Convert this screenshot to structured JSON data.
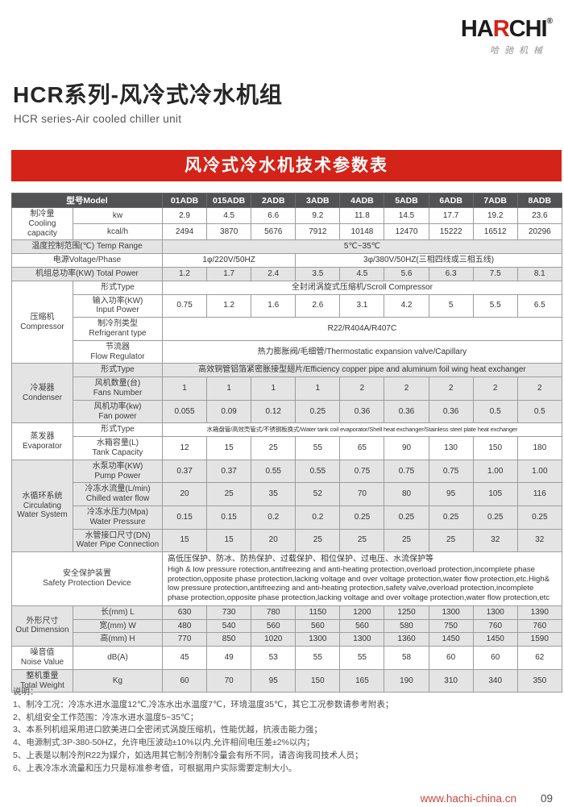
{
  "brand": {
    "logo_pre": "HA",
    "logo_accent": "R",
    "logo_post": "CHI",
    "reg": "®",
    "tagline": "哈驰机械"
  },
  "header": {
    "title": "HCR系列-风冷式冷水机组",
    "subtitle": "HCR series-Air cooled chiller unit"
  },
  "banner": {
    "title": "风冷式冷水机技术参数表"
  },
  "colors": {
    "accent_red": "#d42318",
    "table_header_bg": "#525254",
    "row_shade": "#e4e4e4",
    "footer_link_red": "#c8473a"
  },
  "table": {
    "model_header_label": "型号Model",
    "models": [
      "01ADB",
      "015ADB",
      "2ADB",
      "3ADB",
      "4ADB",
      "5ADB",
      "6ADB",
      "7ADB",
      "8ADB"
    ],
    "sections": [
      {
        "label": [
          "制冷量",
          "Cooling capacity"
        ],
        "shade": false,
        "rows": [
          {
            "sub": [
              "kw"
            ],
            "cells": [
              "2.9",
              "4.5",
              "6.6",
              "9.2",
              "11.8",
              "14.5",
              "17.7",
              "19.2",
              "23.6"
            ]
          },
          {
            "sub": [
              "kcal/h"
            ],
            "cells": [
              "2494",
              "3870",
              "5676",
              "7912",
              "10148",
              "12470",
              "15222",
              "16512",
              "20296"
            ]
          }
        ]
      },
      {
        "label": [
          "温度控制范围(℃) Temp Range"
        ],
        "wide": true,
        "shade": true,
        "rows": [
          {
            "cells": [
              {
                "span": 9,
                "lines": [
                  "5℃~35℃"
                ]
              }
            ]
          }
        ]
      },
      {
        "label": [
          "电源Voltage/Phase"
        ],
        "wide": true,
        "shade": false,
        "rows": [
          {
            "cells": [
              {
                "span": 3,
                "lines": [
                  "1φ/220V/50HZ"
                ]
              },
              {
                "span": 6,
                "lines": [
                  "3φ/380V/50HZ(三相四线或三相五线)"
                ]
              }
            ]
          }
        ]
      },
      {
        "label": [
          "机组总功率(KW) Total Power"
        ],
        "wide": true,
        "shade": true,
        "rows": [
          {
            "cells": [
              "1.2",
              "1.7",
              "2.4",
              "3.5",
              "4.5",
              "5.6",
              "6.3",
              "7.5",
              "8.1"
            ]
          }
        ]
      },
      {
        "label": [
          "压缩机",
          "Compressor"
        ],
        "shade": false,
        "rows": [
          {
            "sub": [
              "形式Type"
            ],
            "cells": [
              {
                "span": 9,
                "lines": [
                  "全封闭涡旋式压缩机/Scroll Compressor"
                ]
              }
            ]
          },
          {
            "sub": [
              "输入功率(KW)",
              "Input Power"
            ],
            "cells": [
              "0.75",
              "1.2",
              "1.6",
              "2.6",
              "3.1",
              "4.2",
              "5",
              "5.5",
              "6.5"
            ]
          },
          {
            "sub": [
              "制冷剂类型",
              "Refrigerant type"
            ],
            "cells": [
              {
                "span": 9,
                "lines": [
                  "R22/R404A/R407C"
                ]
              }
            ]
          },
          {
            "sub": [
              "节流器",
              "Flow Regulator"
            ],
            "cells": [
              {
                "span": 9,
                "lines": [
                  "热力膨胀阀/毛细管/Thermostatic expansion valve/Capillary"
                ]
              }
            ]
          }
        ]
      },
      {
        "label": [
          "冷凝器",
          "Condenser"
        ],
        "shade": true,
        "rows": [
          {
            "sub": [
              "形式Type"
            ],
            "cells": [
              {
                "span": 9,
                "lines": [
                  "高效铜管铝箔紧密胀接型翅片/Efficiency copper pipe and aluminum foil wing heat exchanger"
                ]
              }
            ]
          },
          {
            "sub": [
              "风机数量(台)",
              "Fans Number"
            ],
            "cells": [
              "1",
              "1",
              "1",
              "1",
              "2",
              "2",
              "2",
              "2",
              "2"
            ]
          },
          {
            "sub": [
              "风机功率(kw)",
              "Fan power"
            ],
            "cells": [
              "0.055",
              "0.09",
              "0.12",
              "0.25",
              "0.36",
              "0.36",
              "0.36",
              "0.5",
              "0.5"
            ]
          }
        ]
      },
      {
        "label": [
          "蒸发器",
          "Evaporator"
        ],
        "shade": false,
        "rows": [
          {
            "sub": [
              "形式Type"
            ],
            "cells": [
              {
                "span": 9,
                "small": true,
                "lines": [
                  "水箱盘管/高效壳管式/不锈钢板换式/Water tank coil evaporator/Shell heat exchanger/Stainless steel plate heat exchanger"
                ]
              }
            ]
          },
          {
            "sub": [
              "水箱容量(L)",
              "Tank Capacity"
            ],
            "cells": [
              "12",
              "15",
              "25",
              "55",
              "65",
              "90",
              "130",
              "150",
              "180"
            ]
          }
        ]
      },
      {
        "label": [
          "水循环系统",
          "Circulating",
          "Water System"
        ],
        "shade": true,
        "rows": [
          {
            "sub": [
              "水泵功率(KW)",
              "Pump Power"
            ],
            "cells": [
              "0.37",
              "0.37",
              "0.55",
              "0.55",
              "0.75",
              "0.75",
              "0.75",
              "1.00",
              "1.00"
            ]
          },
          {
            "sub": [
              "冷冻水流量(L/min)",
              "Chilled water flow"
            ],
            "cells": [
              "20",
              "25",
              "35",
              "52",
              "70",
              "80",
              "95",
              "105",
              "116"
            ]
          },
          {
            "sub": [
              "冷冻水压力(Mpa)",
              "Water Pressure"
            ],
            "cells": [
              "0.15",
              "0.15",
              "0.2",
              "0.2",
              "0.25",
              "0.25",
              "0.25",
              "0.25",
              "0.25"
            ]
          },
          {
            "sub": [
              "水管接口尺寸(DN)",
              "Water Pipe Connection"
            ],
            "cells": [
              "15",
              "15",
              "20",
              "25",
              "25",
              "25",
              "25",
              "32",
              "32"
            ]
          }
        ]
      },
      {
        "label": [
          "安全保护装置",
          "Safety Protection Device"
        ],
        "wide": true,
        "shade": false,
        "rows": [
          {
            "cells": [
              {
                "span": 9,
                "safety": true,
                "zh": "高低压保护、防冰、防热保护、过载保护、相位保护、过电压、水流保护等",
                "en": "High & low pressure rotection,antifreezing and anti-heating protection,overload protection,incomplete phase protection,opposite phase protection,lacking voltage and over voltage protection,water flow protection,etc.High& low pressure protection,antifreezing and anti-heating protection,safety valve,overload protection,incomplete phase protection,opposite phase protection,lacking voltage and over voltage protection,water flow protection,etc"
              }
            ]
          }
        ]
      },
      {
        "label": [
          "外形尺寸",
          "Out Dimension"
        ],
        "shade": true,
        "rows": [
          {
            "sub": [
              "长(mm)  L"
            ],
            "cells": [
              "630",
              "730",
              "780",
              "1150",
              "1200",
              "1250",
              "1300",
              "1300",
              "1390"
            ]
          },
          {
            "sub": [
              "宽(mm) W"
            ],
            "cells": [
              "480",
              "540",
              "560",
              "560",
              "560",
              "580",
              "750",
              "760",
              "760"
            ]
          },
          {
            "sub": [
              "高(mm) H"
            ],
            "cells": [
              "770",
              "850",
              "1020",
              "1300",
              "1300",
              "1360",
              "1450",
              "1450",
              "1590"
            ]
          }
        ]
      },
      {
        "label": [
          "噪音值",
          "Noise Value"
        ],
        "shade": false,
        "rows": [
          {
            "sub": [
              "dB(A)"
            ],
            "cells": [
              "45",
              "49",
              "53",
              "55",
              "55",
              "58",
              "60",
              "60",
              "62"
            ]
          }
        ]
      },
      {
        "label": [
          "整机重量",
          "Total Weight"
        ],
        "shade": true,
        "rows": [
          {
            "sub": [
              "Kg"
            ],
            "cells": [
              "60",
              "70",
              "95",
              "150",
              "165",
              "190",
              "310",
              "340",
              "350"
            ]
          }
        ]
      }
    ]
  },
  "notes": {
    "heading": "说明：",
    "items": [
      "1、制冷工况：冷冻水进水温度12℃,冷冻水出水温度7℃，环境温度35℃，其它工况参数请参考附表；",
      "2、机组安全工作范围：冷冻水进水温度5~35℃；",
      "3、本系列机组采用进口欧美进口全密闭式涡旋压缩机，性能优越，抗液击能力强；",
      "4、电源制式:3P-380-50HZ，允许电压波动±10%以内,允许相间电压差±2%以内；",
      "5、上表是以制冷剂R22为媒介，如选用其它制冷剂制冷量会有所不同，请咨询我司技术人员；",
      "6、上表冷冻水流量和压力只是标准参考值，可根据用户实际需要定制大小。"
    ]
  },
  "footer": {
    "url": "www.hachi-china.cn",
    "page": "09"
  }
}
